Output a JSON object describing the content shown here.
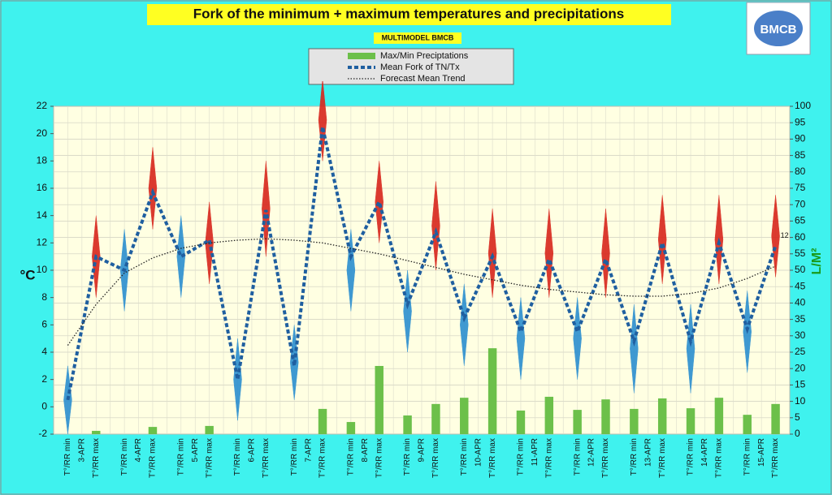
{
  "chart_data": {
    "type": "combo",
    "title": "Fork of the minimum + maximum temperatures and precipitations",
    "subtitle": "MULTIMODEL BMCB",
    "logo": "BMCB",
    "y_label": "°C",
    "y2_label": "L/M²",
    "categories": [
      "T°/RR min",
      "T°/RR max",
      "T°/RR min",
      "T°/RR max",
      "T°/RR min",
      "T°/RR max",
      "T°/RR min",
      "T°/RR max",
      "T°/RR min",
      "T°/RR max",
      "T°/RR min",
      "T°/RR max",
      "T°/RR min",
      "T°/RR max",
      "T°/RR min",
      "T°/RR max",
      "T°/RR min",
      "T°/RR max",
      "T°/RR min",
      "T°/RR max",
      "T°/RR min",
      "T°/RR max",
      "T°/RR min",
      "T°/RR max",
      "T°/RR min",
      "T°/RR max"
    ],
    "dates": [
      "3-APR",
      "4-APR",
      "5-APR",
      "6-APR",
      "7-APR",
      "8-APR",
      "9-APR",
      "10-APR",
      "11-APR",
      "12-APR",
      "13-APR",
      "14-APR",
      "15-APR"
    ],
    "ylim": [
      -2,
      22
    ],
    "yticks": [
      -2,
      0,
      2,
      4,
      6,
      8,
      10,
      12,
      14,
      16,
      18,
      20,
      22
    ],
    "y2lim": [
      0,
      100
    ],
    "y2ticks": [
      0,
      5,
      10,
      15,
      20,
      25,
      30,
      35,
      40,
      45,
      50,
      55,
      60,
      65,
      70,
      75,
      80,
      85,
      90,
      95,
      100
    ],
    "grid": true,
    "forks": {
      "colors": [
        "#2b8fd0",
        "#d8261c"
      ],
      "low": [
        -2,
        8,
        7,
        13,
        8,
        9,
        -1,
        11,
        0.5,
        18,
        7,
        12,
        4,
        10,
        3,
        8,
        2,
        8,
        2,
        8,
        1,
        9,
        1,
        9,
        2.5,
        9.5
      ],
      "high": [
        3,
        14,
        13,
        19,
        14,
        15,
        5,
        18,
        6,
        24,
        13,
        18,
        10,
        16.5,
        9,
        14.5,
        8,
        14.5,
        8,
        14.5,
        7.5,
        15.5,
        7.5,
        15.5,
        8.5,
        15.5
      ]
    },
    "series": [
      {
        "name": "Max/Min Preciptations",
        "type": "bar",
        "axis": "y2",
        "color": "#6cc04a",
        "values": [
          0,
          1,
          0,
          2.2,
          0,
          2.5,
          0,
          0,
          0,
          7.7,
          3.7,
          20.8,
          5.7,
          9.2,
          11.1,
          26.2,
          7.2,
          11.4,
          7.4,
          10.6,
          7.7,
          10.9,
          7.9,
          11.1,
          5.9,
          9.2
        ]
      },
      {
        "name": "Mean Fork of TN/Tx",
        "type": "line",
        "color": "#1f5fa0",
        "dash": "dashed",
        "values": [
          0.5,
          11,
          10,
          15.7,
          11,
          12.2,
          2,
          14.4,
          3,
          20.5,
          11,
          15,
          7.5,
          12.8,
          6.5,
          11,
          5.5,
          10.8,
          5.5,
          10.8,
          4.8,
          12,
          4.8,
          12,
          5.7,
          11.8
        ],
        "value_labels": [
          null,
          null,
          null,
          null,
          null,
          null,
          null,
          null,
          null,
          null,
          null,
          null,
          null,
          null,
          null,
          null,
          null,
          null,
          null,
          null,
          null,
          null,
          null,
          null,
          null,
          "12"
        ]
      },
      {
        "name": "Forecast Mean Trend",
        "type": "line",
        "color": "#222222",
        "dash": "dotted",
        "values": [
          4.5,
          7.5,
          9.8,
          10.9,
          11.6,
          12.0,
          12.2,
          12.3,
          12.2,
          12.0,
          11.6,
          11.2,
          10.7,
          10.2,
          9.7,
          9.3,
          8.9,
          8.6,
          8.4,
          8.2,
          8.1,
          8.1,
          8.3,
          8.7,
          9.4,
          10.3
        ]
      }
    ]
  }
}
